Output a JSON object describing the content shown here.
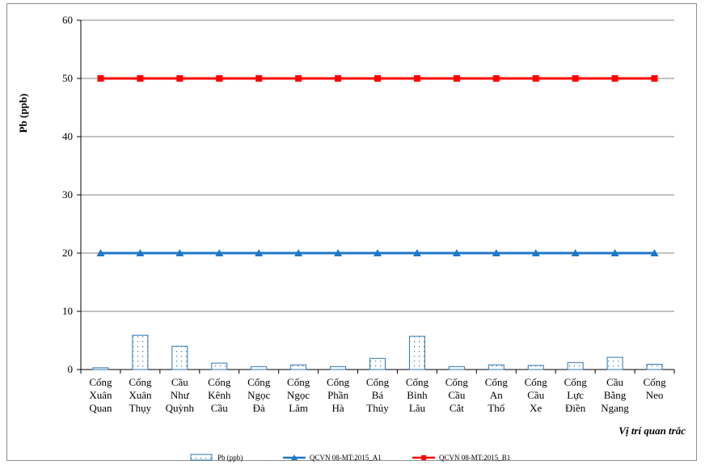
{
  "chart_data": {
    "type": "bar",
    "categories": [
      [
        "Cống",
        "Xuân",
        "Quan"
      ],
      [
        "Cống",
        "Xuân",
        "Thụy"
      ],
      [
        "Cầu",
        "Như",
        "Quỳnh"
      ],
      [
        "Cống",
        "Kênh",
        "Cầu"
      ],
      [
        "Cống",
        "Ngọc",
        "Đà"
      ],
      [
        "Cống",
        "Ngọc",
        "Lâm"
      ],
      [
        "Cống",
        "Phần",
        "Hà"
      ],
      [
        "Cống",
        "Bá",
        "Thủy"
      ],
      [
        "Cống",
        "Bình",
        "Lâu"
      ],
      [
        "Cống",
        "Cầu",
        "Cắt"
      ],
      [
        "Cống",
        "An",
        "Thổ"
      ],
      [
        "Cống",
        "Cầu",
        "Xe"
      ],
      [
        "Cống",
        "Lực",
        "Điền"
      ],
      [
        "Cầu",
        "Bằng",
        "Ngang"
      ],
      [
        "Cống",
        "Neo"
      ]
    ],
    "series": [
      {
        "name": "Pb (ppb)",
        "kind": "bar",
        "color": "#2e75b6",
        "values": [
          0.3,
          5.9,
          4.0,
          1.1,
          0.5,
          0.8,
          0.5,
          1.9,
          5.7,
          0.5,
          0.8,
          0.7,
          1.2,
          2.1,
          0.9
        ]
      },
      {
        "name": "QCVN 08-MT:2015_A1",
        "kind": "line",
        "marker": "triangle",
        "color": "#1f77c8",
        "values": [
          20,
          20,
          20,
          20,
          20,
          20,
          20,
          20,
          20,
          20,
          20,
          20,
          20,
          20,
          20
        ]
      },
      {
        "name": "QCVN 08-MT:2015_B1",
        "kind": "line",
        "marker": "square",
        "color": "#ff0000",
        "values": [
          50,
          50,
          50,
          50,
          50,
          50,
          50,
          50,
          50,
          50,
          50,
          50,
          50,
          50,
          50
        ]
      }
    ],
    "xlabel": "Vị trí quan trắc",
    "ylabel": "Pb (ppb)",
    "ylim": [
      0,
      60
    ],
    "yticks": [
      "0",
      "10",
      "20",
      "30",
      "40",
      "50",
      "60"
    ],
    "grid": "horizontal",
    "legend": "bottom"
  }
}
